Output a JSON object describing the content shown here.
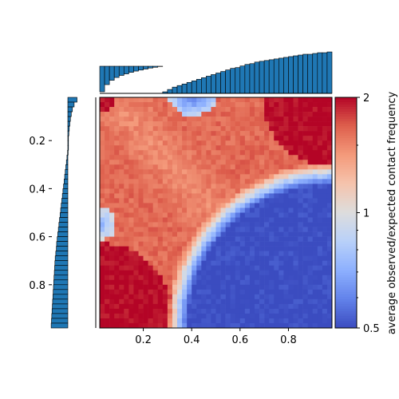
{
  "chart_data": [
    {
      "type": "heatmap",
      "id": "main-heatmap",
      "xlabel": "",
      "ylabel": "",
      "xlim": [
        0.02,
        0.98
      ],
      "ylim": [
        0.02,
        0.98
      ],
      "y_inverted": true,
      "x_ticks": [
        {
          "value": 0.2,
          "label": "0.2"
        },
        {
          "value": 0.4,
          "label": "0.4"
        },
        {
          "value": 0.6,
          "label": "0.6"
        },
        {
          "value": 0.8,
          "label": "0.8"
        }
      ],
      "y_ticks": [
        {
          "value": 0.2,
          "label": "0.2"
        },
        {
          "value": 0.4,
          "label": "0.4"
        },
        {
          "value": 0.6,
          "label": "0.6"
        },
        {
          "value": 0.8,
          "label": "0.8"
        }
      ],
      "grid": false,
      "colormap": "coolwarm",
      "color_scale": "log2",
      "grid_size": 48,
      "pattern_regions": [
        {
          "name": "top-right-enriched-corner",
          "center": [
            1.0,
            0.0
          ],
          "radius": 0.3,
          "value": 2.0
        },
        {
          "name": "bottom-left-enriched-corner",
          "center": [
            0.0,
            1.0
          ],
          "radius": 0.33,
          "value": 2.0
        },
        {
          "name": "top-left-enriched-corner",
          "center": [
            0.0,
            0.0
          ],
          "radius": 0.07,
          "value": 2.0
        },
        {
          "name": "bottom-right-depleted-region",
          "center": [
            1.0,
            1.0
          ],
          "radius": 0.62,
          "value": 0.5
        },
        {
          "name": "top-center-depleted-notch",
          "center": [
            0.4,
            0.0
          ],
          "radius": 0.08,
          "value": 0.5
        },
        {
          "name": "left-depleted-notch",
          "center": [
            0.0,
            0.55
          ],
          "radius": 0.07,
          "value": 0.6
        },
        {
          "name": "central-body",
          "value": 1.55
        }
      ]
    },
    {
      "type": "bar",
      "id": "top-marginal",
      "orientation": "vertical",
      "baseline": "top",
      "x": [
        0.03,
        0.05,
        0.07,
        0.09,
        0.11,
        0.13,
        0.15,
        0.17,
        0.19,
        0.21,
        0.23,
        0.25,
        0.27,
        0.29,
        0.31,
        0.33,
        0.35,
        0.37,
        0.39,
        0.41,
        0.43,
        0.45,
        0.47,
        0.49,
        0.51,
        0.53,
        0.55,
        0.57,
        0.59,
        0.61,
        0.63,
        0.65,
        0.67,
        0.69,
        0.71,
        0.73,
        0.75,
        0.77,
        0.79,
        0.81,
        0.83,
        0.85,
        0.87,
        0.89,
        0.91,
        0.93,
        0.95,
        0.97
      ],
      "values": [
        -1.0,
        -0.72,
        -0.55,
        -0.44,
        -0.36,
        -0.3,
        -0.24,
        -0.19,
        -0.15,
        -0.11,
        -0.07,
        -0.04,
        -0.01,
        0.02,
        0.05,
        0.08,
        0.1,
        0.12,
        0.14,
        0.16,
        0.18,
        0.2,
        0.22,
        0.24,
        0.26,
        0.28,
        0.3,
        0.32,
        0.33,
        0.35,
        0.37,
        0.38,
        0.4,
        0.41,
        0.42,
        0.43,
        0.44,
        0.45,
        0.46,
        0.47,
        0.48,
        0.49,
        0.5,
        0.5,
        0.51,
        0.52,
        0.52,
        0.53
      ],
      "color": "#1f77b4"
    },
    {
      "type": "bar",
      "id": "left-marginal",
      "orientation": "horizontal",
      "baseline": "right",
      "y": [
        0.03,
        0.05,
        0.07,
        0.09,
        0.11,
        0.13,
        0.15,
        0.17,
        0.19,
        0.21,
        0.23,
        0.25,
        0.27,
        0.29,
        0.31,
        0.33,
        0.35,
        0.37,
        0.39,
        0.41,
        0.43,
        0.45,
        0.47,
        0.49,
        0.51,
        0.53,
        0.55,
        0.57,
        0.59,
        0.61,
        0.63,
        0.65,
        0.67,
        0.69,
        0.71,
        0.73,
        0.75,
        0.77,
        0.79,
        0.81,
        0.83,
        0.85,
        0.87,
        0.89,
        0.91,
        0.93,
        0.95,
        0.97
      ],
      "values": [
        -0.32,
        -0.22,
        -0.16,
        -0.12,
        -0.09,
        -0.07,
        -0.05,
        -0.035,
        -0.02,
        -0.01,
        0.0,
        0.01,
        0.03,
        0.05,
        0.07,
        0.09,
        0.11,
        0.13,
        0.15,
        0.17,
        0.19,
        0.21,
        0.23,
        0.25,
        0.27,
        0.29,
        0.31,
        0.33,
        0.35,
        0.37,
        0.39,
        0.4,
        0.42,
        0.44,
        0.45,
        0.46,
        0.47,
        0.48,
        0.49,
        0.5,
        0.51,
        0.52,
        0.53,
        0.54,
        0.55,
        0.56,
        0.57,
        0.58
      ],
      "color": "#1f77b4"
    },
    {
      "type": "colorbar",
      "id": "colorbar",
      "label": "average observed/expected contact frequency",
      "scale": "log",
      "range": [
        0.5,
        2
      ],
      "ticks": [
        {
          "value": 0.5,
          "label": "0.5"
        },
        {
          "value": 1,
          "label": "1"
        },
        {
          "value": 2,
          "label": "2"
        }
      ],
      "colormap": "coolwarm"
    }
  ]
}
